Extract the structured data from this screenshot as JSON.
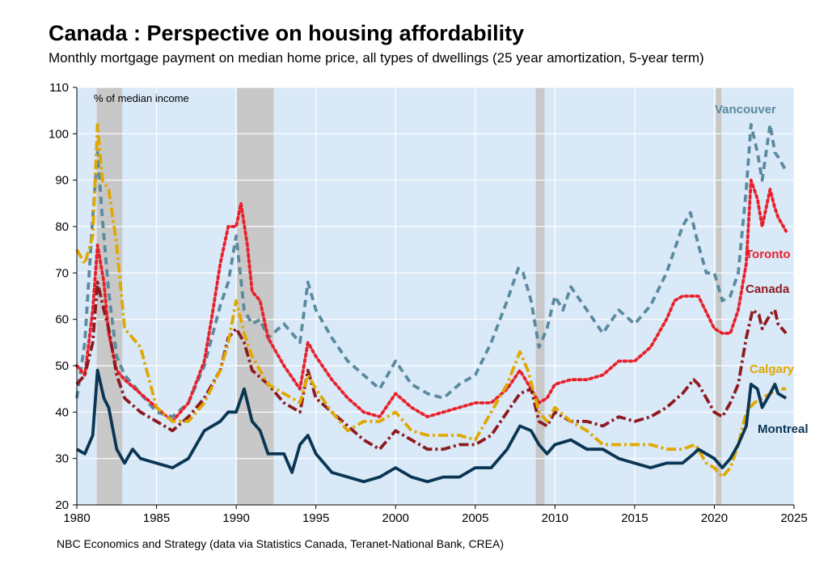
{
  "chart_data": {
    "type": "line",
    "title": "Canada : Perspective on housing affordability",
    "subtitle": "Monthly mortgage payment on median home price, all types of dwellings (25 year amortization, 5-year term)",
    "source": "NBC Economics and Strategy (data via Statistics Canada, Teranet-National Bank, CREA)",
    "ylabel": "% of median income",
    "xlim": [
      1980,
      2025
    ],
    "ylim": [
      20,
      110
    ],
    "x_ticks": [
      1980,
      1985,
      1990,
      1995,
      2000,
      2005,
      2010,
      2015,
      2020,
      2025
    ],
    "y_ticks": [
      20,
      30,
      40,
      50,
      60,
      70,
      80,
      90,
      100,
      110
    ],
    "grid": "horizontal and vertical",
    "background_color": "#d9e9f8",
    "shaded_periods": [
      [
        1981.25,
        1982.85
      ],
      [
        1990.05,
        1992.35
      ],
      [
        2008.8,
        2009.35
      ],
      [
        2020.1,
        2020.45
      ]
    ],
    "shaded_color": "#c8c8c8",
    "series": [
      {
        "name": "Vancouver",
        "color": "#5a8a9e",
        "style": "dashed",
        "x": [
          1980,
          1980.5,
          1981,
          1981.3,
          1981.6,
          1982,
          1982.5,
          1983,
          1984,
          1985,
          1986,
          1987,
          1988,
          1989,
          1989.5,
          1990,
          1990.5,
          1991,
          1991.5,
          1992,
          1993,
          1994,
          1994.5,
          1995,
          1996,
          1997,
          1998,
          1999,
          2000,
          2001,
          2002,
          2003,
          2004,
          2005,
          2006,
          2007,
          2007.7,
          2008,
          2008.5,
          2009,
          2009.5,
          2010,
          2010.5,
          2011,
          2012,
          2013,
          2014,
          2015,
          2016,
          2017,
          2018,
          2018.5,
          2019,
          2019.5,
          2020,
          2020.5,
          2021,
          2021.5,
          2022,
          2022.3,
          2022.7,
          2023,
          2023.5,
          2023.8,
          2024,
          2024.5
        ],
        "y": [
          43,
          55,
          82,
          96,
          82,
          66,
          52,
          48,
          44,
          40,
          39,
          42,
          50,
          63,
          68,
          78,
          62,
          59,
          60,
          56,
          59,
          55,
          68,
          62,
          56,
          51,
          48,
          45,
          51,
          46,
          44,
          43,
          46,
          48,
          55,
          64,
          71,
          70,
          64,
          54,
          58,
          65,
          62,
          67,
          62,
          57,
          62,
          59,
          63,
          70,
          80,
          83,
          76,
          70,
          70,
          64,
          65,
          70,
          88,
          102,
          96,
          90,
          102,
          96,
          95,
          92
        ]
      },
      {
        "name": "Toronto",
        "color": "#e8202a",
        "style": "dotted",
        "x": [
          1980,
          1980.5,
          1981,
          1981.3,
          1981.7,
          1982,
          1982.5,
          1983,
          1984,
          1985,
          1986,
          1987,
          1988,
          1988.5,
          1989,
          1989.5,
          1990,
          1990.3,
          1990.7,
          1991,
          1991.5,
          1992,
          1993,
          1994,
          1994.5,
          1995,
          1996,
          1997,
          1998,
          1999,
          2000,
          2001,
          2002,
          2003,
          2004,
          2005,
          2006,
          2007,
          2007.8,
          2008.5,
          2009,
          2009.5,
          2010,
          2011,
          2012,
          2013,
          2014,
          2015,
          2016,
          2017,
          2017.5,
          2018,
          2019,
          2020,
          2020.5,
          2021,
          2021.5,
          2022,
          2022.3,
          2022.7,
          2023,
          2023.5,
          2023.8,
          2024,
          2024.5
        ],
        "y": [
          50,
          48,
          62,
          76,
          68,
          57,
          49,
          47,
          44,
          41,
          38,
          42,
          51,
          61,
          72,
          80,
          80,
          85,
          76,
          66,
          64,
          56,
          50,
          45,
          55,
          52,
          47,
          43,
          40,
          39,
          44,
          41,
          39,
          40,
          41,
          42,
          42,
          45,
          49,
          45,
          42,
          43,
          46,
          47,
          47,
          48,
          51,
          51,
          54,
          60,
          64,
          65,
          65,
          58,
          57,
          57,
          62,
          72,
          90,
          86,
          80,
          88,
          84,
          82,
          79
        ]
      },
      {
        "name": "Canada",
        "color": "#8e1a1f",
        "style": "dash-dot",
        "x": [
          1980,
          1980.5,
          1981,
          1981.3,
          1981.7,
          1982,
          1982.5,
          1983,
          1984,
          1985,
          1986,
          1987,
          1988,
          1989,
          1989.5,
          1990,
          1990.5,
          1991,
          1992,
          1993,
          1994,
          1994.5,
          1995,
          1996,
          1997,
          1998,
          1999,
          2000,
          2001,
          2002,
          2003,
          2004,
          2005,
          2006,
          2007,
          2007.8,
          2008.5,
          2009,
          2009.5,
          2010,
          2011,
          2012,
          2013,
          2014,
          2015,
          2016,
          2017,
          2018,
          2018.7,
          2019,
          2020,
          2020.5,
          2021,
          2021.5,
          2022,
          2022.4,
          2022.8,
          2023,
          2023.5,
          2023.8,
          2024,
          2024.5
        ],
        "y": [
          46,
          48,
          55,
          68,
          62,
          58,
          48,
          43,
          40,
          38,
          36,
          39,
          43,
          49,
          56,
          58,
          55,
          49,
          46,
          42,
          40,
          49,
          43,
          40,
          37,
          34,
          32,
          36,
          34,
          32,
          32,
          33,
          33,
          35,
          40,
          44,
          45,
          38,
          37,
          40,
          38,
          38,
          37,
          39,
          38,
          39,
          41,
          44,
          47,
          46,
          40,
          39,
          42,
          46,
          56,
          62,
          61,
          58,
          61,
          62,
          59,
          57
        ]
      },
      {
        "name": "Calgary",
        "color": "#e0a800",
        "style": "dash-dot",
        "x": [
          1980,
          1980.5,
          1981,
          1981.3,
          1981.6,
          1982,
          1982.5,
          1983,
          1984,
          1985,
          1986,
          1987,
          1988,
          1989,
          1989.5,
          1990,
          1990.5,
          1991,
          1992,
          1993,
          1994,
          1994.5,
          1995,
          1996,
          1997,
          1998,
          1999,
          2000,
          2001,
          2002,
          2003,
          2004,
          2005,
          2006,
          2007,
          2007.8,
          2008.3,
          2009,
          2009.5,
          2010,
          2011,
          2012,
          2013,
          2014,
          2015,
          2016,
          2017,
          2018,
          2018.8,
          2019.5,
          2020,
          2020.5,
          2021,
          2021.5,
          2022,
          2022.5,
          2023,
          2023.5,
          2024,
          2024.5
        ],
        "y": [
          75,
          72,
          78,
          102,
          90,
          88,
          76,
          58,
          54,
          41,
          38,
          38,
          42,
          49,
          55,
          64,
          57,
          52,
          46,
          44,
          42,
          48,
          45,
          40,
          36,
          38,
          38,
          40,
          36,
          35,
          35,
          35,
          34,
          40,
          46,
          53,
          49,
          40,
          38,
          41,
          38,
          36,
          33,
          33,
          33,
          33,
          32,
          32,
          33,
          29,
          28,
          26,
          28,
          33,
          40,
          42,
          43,
          44,
          45,
          45
        ]
      },
      {
        "name": "Montreal",
        "color": "#0a3654",
        "style": "solid",
        "x": [
          1980,
          1980.5,
          1981,
          1981.3,
          1981.7,
          1982,
          1982.5,
          1983,
          1983.5,
          1984,
          1985,
          1986,
          1987,
          1988,
          1989,
          1989.5,
          1990,
          1990.5,
          1991,
          1991.5,
          1992,
          1993,
          1993.5,
          1994,
          1994.5,
          1995,
          1996,
          1997,
          1998,
          1999,
          2000,
          2001,
          2002,
          2003,
          2004,
          2005,
          2006,
          2007,
          2007.8,
          2008.5,
          2009,
          2009.5,
          2010,
          2011,
          2012,
          2013,
          2014,
          2015,
          2016,
          2017,
          2018,
          2018.7,
          2019,
          2020,
          2020.5,
          2021,
          2021.5,
          2022,
          2022.3,
          2022.7,
          2023,
          2023.5,
          2023.8,
          2024,
          2024.5
        ],
        "y": [
          32,
          31,
          35,
          49,
          43,
          41,
          32,
          29,
          32,
          30,
          29,
          28,
          30,
          36,
          38,
          40,
          40,
          45,
          38,
          36,
          31,
          31,
          27,
          33,
          35,
          31,
          27,
          26,
          25,
          26,
          28,
          26,
          25,
          26,
          26,
          28,
          28,
          32,
          37,
          36,
          33,
          31,
          33,
          34,
          32,
          32,
          30,
          29,
          28,
          29,
          29,
          31,
          32,
          30,
          28,
          30,
          33,
          37,
          46,
          45,
          41,
          44,
          46,
          44,
          43
        ]
      }
    ]
  }
}
